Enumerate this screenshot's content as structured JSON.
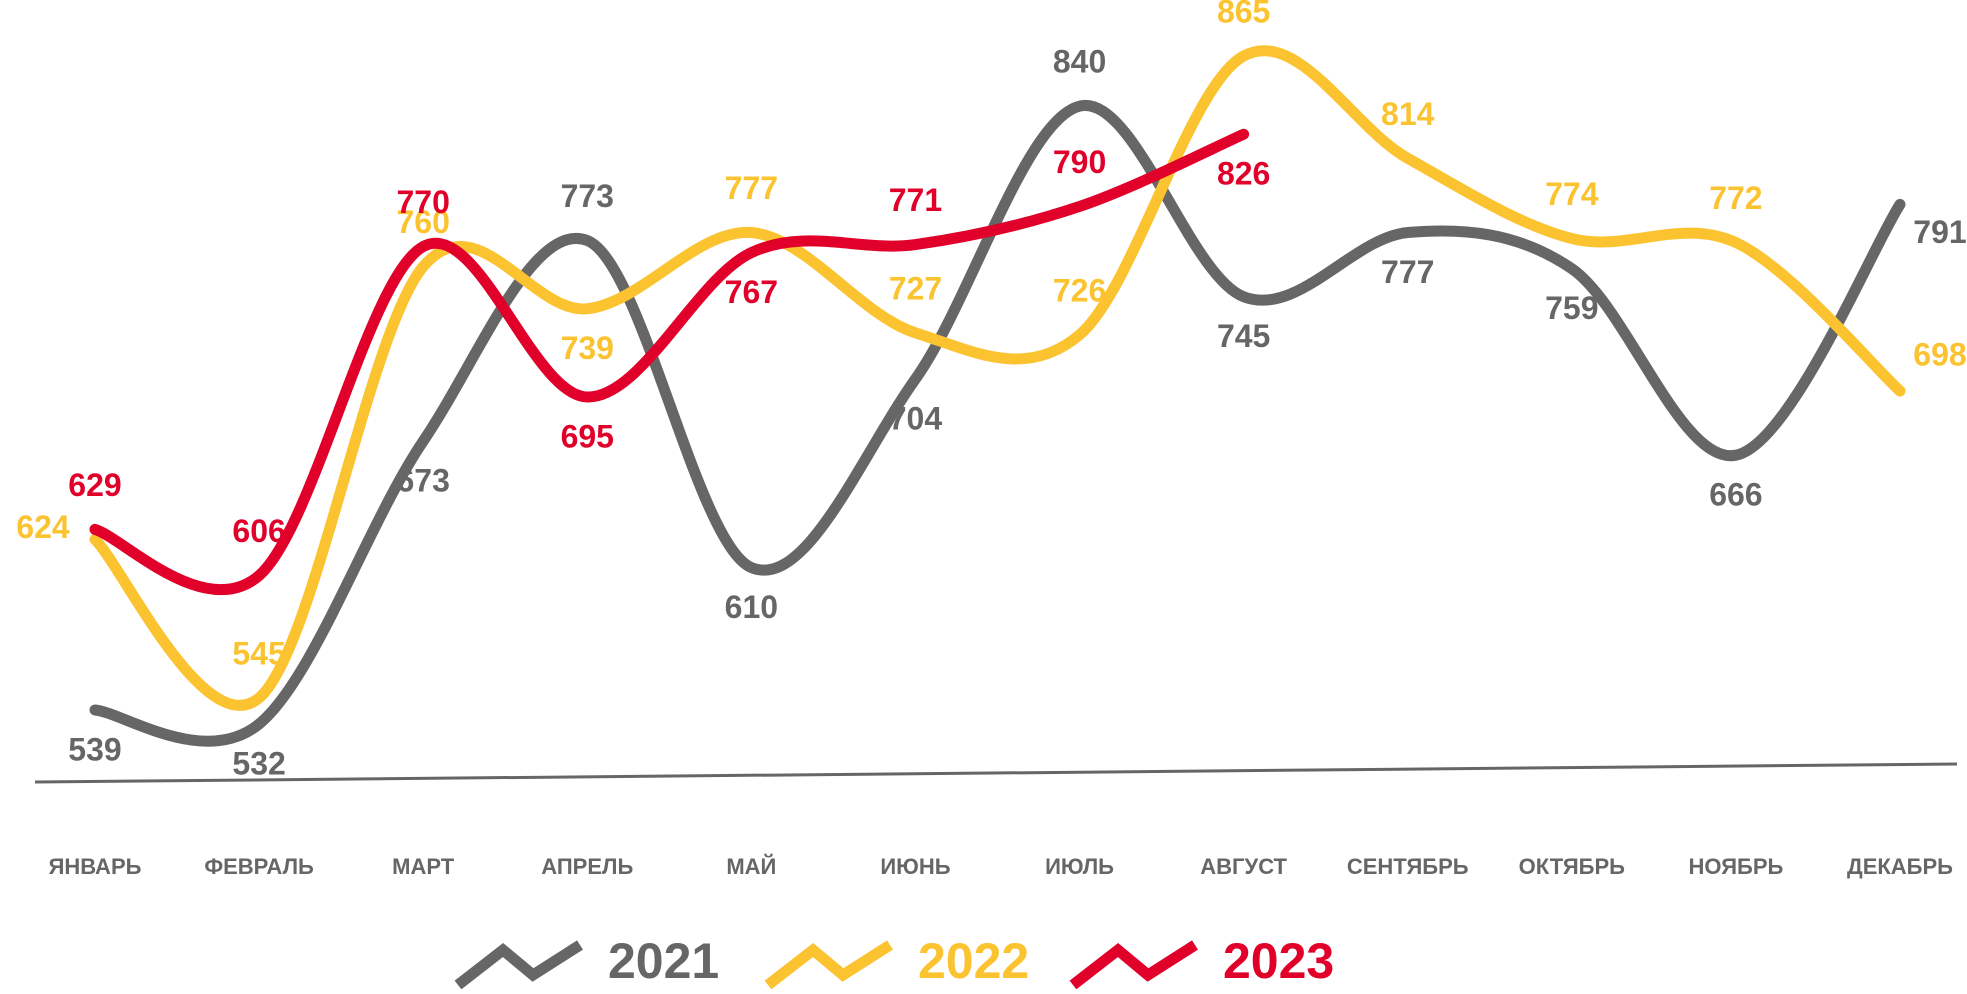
{
  "chart_data": {
    "type": "line",
    "categories": [
      "ЯНВАРЬ",
      "ФЕВРАЛЬ",
      "МАРТ",
      "АПРЕЛЬ",
      "МАЙ",
      "ИЮНЬ",
      "ИЮЛЬ",
      "АВГУСТ",
      "СЕНТЯБРЬ",
      "ОКТЯБРЬ",
      "НОЯБРЬ",
      "ДЕКАБРЬ"
    ],
    "series": [
      {
        "name": "2021",
        "color": "#666666",
        "values": [
          539,
          532,
          673,
          773,
          610,
          704,
          840,
          745,
          777,
          759,
          666,
          791
        ]
      },
      {
        "name": "2022",
        "color": "#fcc330",
        "values": [
          624,
          545,
          760,
          739,
          777,
          727,
          726,
          865,
          814,
          774,
          772,
          698
        ]
      },
      {
        "name": "2023",
        "color": "#e0002a",
        "values": [
          629,
          606,
          770,
          695,
          767,
          771,
          790,
          826,
          null,
          null,
          null,
          null
        ]
      }
    ]
  }
}
